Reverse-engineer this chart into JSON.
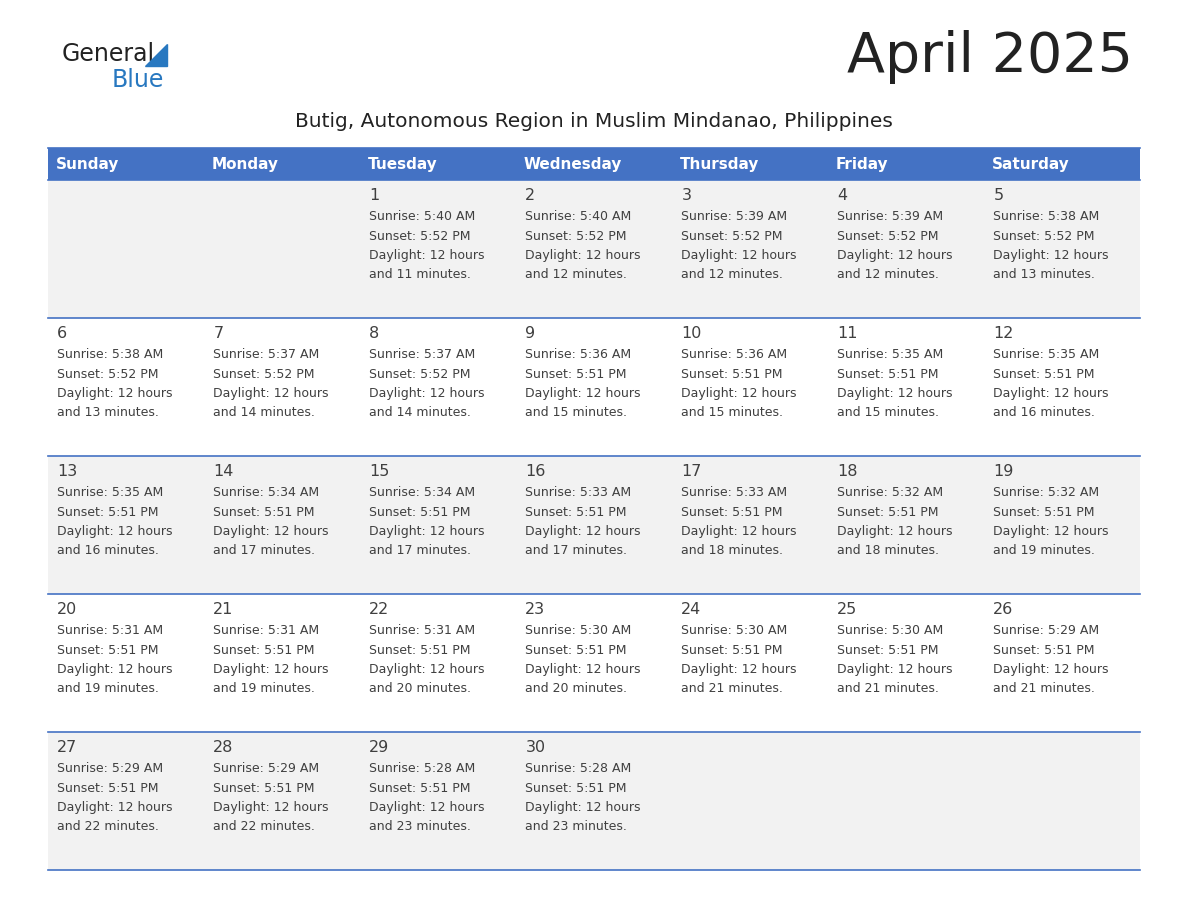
{
  "title": "April 2025",
  "subtitle": "Butig, Autonomous Region in Muslim Mindanao, Philippines",
  "days_of_week": [
    "Sunday",
    "Monday",
    "Tuesday",
    "Wednesday",
    "Thursday",
    "Friday",
    "Saturday"
  ],
  "header_bg": "#4472c4",
  "header_text_color": "#ffffff",
  "row_bg_odd": "#f2f2f2",
  "row_bg_even": "#ffffff",
  "cell_text_color": "#404040",
  "border_color": "#4472c4",
  "title_color": "#222222",
  "subtitle_color": "#222222",
  "logo_general_color": "#222222",
  "logo_blue_color": "#2878c0",
  "calendar_data": [
    [
      {
        "day": null,
        "sunrise": null,
        "sunset": null,
        "daylight": null
      },
      {
        "day": null,
        "sunrise": null,
        "sunset": null,
        "daylight": null
      },
      {
        "day": 1,
        "sunrise": "5:40 AM",
        "sunset": "5:52 PM",
        "daylight": "12 hours and 11 minutes."
      },
      {
        "day": 2,
        "sunrise": "5:40 AM",
        "sunset": "5:52 PM",
        "daylight": "12 hours and 12 minutes."
      },
      {
        "day": 3,
        "sunrise": "5:39 AM",
        "sunset": "5:52 PM",
        "daylight": "12 hours and 12 minutes."
      },
      {
        "day": 4,
        "sunrise": "5:39 AM",
        "sunset": "5:52 PM",
        "daylight": "12 hours and 12 minutes."
      },
      {
        "day": 5,
        "sunrise": "5:38 AM",
        "sunset": "5:52 PM",
        "daylight": "12 hours and 13 minutes."
      }
    ],
    [
      {
        "day": 6,
        "sunrise": "5:38 AM",
        "sunset": "5:52 PM",
        "daylight": "12 hours and 13 minutes."
      },
      {
        "day": 7,
        "sunrise": "5:37 AM",
        "sunset": "5:52 PM",
        "daylight": "12 hours and 14 minutes."
      },
      {
        "day": 8,
        "sunrise": "5:37 AM",
        "sunset": "5:52 PM",
        "daylight": "12 hours and 14 minutes."
      },
      {
        "day": 9,
        "sunrise": "5:36 AM",
        "sunset": "5:51 PM",
        "daylight": "12 hours and 15 minutes."
      },
      {
        "day": 10,
        "sunrise": "5:36 AM",
        "sunset": "5:51 PM",
        "daylight": "12 hours and 15 minutes."
      },
      {
        "day": 11,
        "sunrise": "5:35 AM",
        "sunset": "5:51 PM",
        "daylight": "12 hours and 15 minutes."
      },
      {
        "day": 12,
        "sunrise": "5:35 AM",
        "sunset": "5:51 PM",
        "daylight": "12 hours and 16 minutes."
      }
    ],
    [
      {
        "day": 13,
        "sunrise": "5:35 AM",
        "sunset": "5:51 PM",
        "daylight": "12 hours and 16 minutes."
      },
      {
        "day": 14,
        "sunrise": "5:34 AM",
        "sunset": "5:51 PM",
        "daylight": "12 hours and 17 minutes."
      },
      {
        "day": 15,
        "sunrise": "5:34 AM",
        "sunset": "5:51 PM",
        "daylight": "12 hours and 17 minutes."
      },
      {
        "day": 16,
        "sunrise": "5:33 AM",
        "sunset": "5:51 PM",
        "daylight": "12 hours and 17 minutes."
      },
      {
        "day": 17,
        "sunrise": "5:33 AM",
        "sunset": "5:51 PM",
        "daylight": "12 hours and 18 minutes."
      },
      {
        "day": 18,
        "sunrise": "5:32 AM",
        "sunset": "5:51 PM",
        "daylight": "12 hours and 18 minutes."
      },
      {
        "day": 19,
        "sunrise": "5:32 AM",
        "sunset": "5:51 PM",
        "daylight": "12 hours and 19 minutes."
      }
    ],
    [
      {
        "day": 20,
        "sunrise": "5:31 AM",
        "sunset": "5:51 PM",
        "daylight": "12 hours and 19 minutes."
      },
      {
        "day": 21,
        "sunrise": "5:31 AM",
        "sunset": "5:51 PM",
        "daylight": "12 hours and 19 minutes."
      },
      {
        "day": 22,
        "sunrise": "5:31 AM",
        "sunset": "5:51 PM",
        "daylight": "12 hours and 20 minutes."
      },
      {
        "day": 23,
        "sunrise": "5:30 AM",
        "sunset": "5:51 PM",
        "daylight": "12 hours and 20 minutes."
      },
      {
        "day": 24,
        "sunrise": "5:30 AM",
        "sunset": "5:51 PM",
        "daylight": "12 hours and 21 minutes."
      },
      {
        "day": 25,
        "sunrise": "5:30 AM",
        "sunset": "5:51 PM",
        "daylight": "12 hours and 21 minutes."
      },
      {
        "day": 26,
        "sunrise": "5:29 AM",
        "sunset": "5:51 PM",
        "daylight": "12 hours and 21 minutes."
      }
    ],
    [
      {
        "day": 27,
        "sunrise": "5:29 AM",
        "sunset": "5:51 PM",
        "daylight": "12 hours and 22 minutes."
      },
      {
        "day": 28,
        "sunrise": "5:29 AM",
        "sunset": "5:51 PM",
        "daylight": "12 hours and 22 minutes."
      },
      {
        "day": 29,
        "sunrise": "5:28 AM",
        "sunset": "5:51 PM",
        "daylight": "12 hours and 23 minutes."
      },
      {
        "day": 30,
        "sunrise": "5:28 AM",
        "sunset": "5:51 PM",
        "daylight": "12 hours and 23 minutes."
      },
      {
        "day": null,
        "sunrise": null,
        "sunset": null,
        "daylight": null
      },
      {
        "day": null,
        "sunrise": null,
        "sunset": null,
        "daylight": null
      },
      {
        "day": null,
        "sunrise": null,
        "sunset": null,
        "daylight": null
      }
    ]
  ]
}
